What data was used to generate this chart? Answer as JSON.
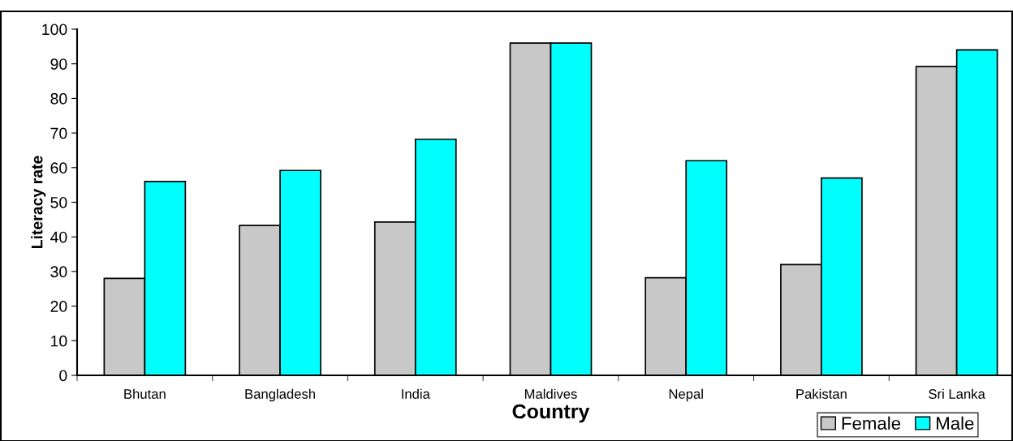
{
  "chart_data": {
    "type": "bar",
    "xlabel": "Country",
    "ylabel": "Literacy rate",
    "categories": [
      "Bhutan",
      "Bangladesh",
      "India",
      "Maldives",
      "Nepal",
      "Pakistan",
      "Sri Lanka"
    ],
    "series": [
      {
        "name": "Female",
        "color": "#c8c8c8",
        "values": [
          28,
          43.3,
          44.3,
          96,
          28.2,
          32,
          89.2
        ]
      },
      {
        "name": "Male",
        "color": "#00ffff",
        "values": [
          56,
          59.2,
          68.2,
          96,
          62,
          57,
          94
        ]
      }
    ],
    "ylim": [
      0,
      100
    ],
    "yticks": [
      0,
      10,
      20,
      30,
      40,
      50,
      60,
      70,
      80,
      90,
      100
    ],
    "grid": false,
    "legend": "bottom right"
  }
}
